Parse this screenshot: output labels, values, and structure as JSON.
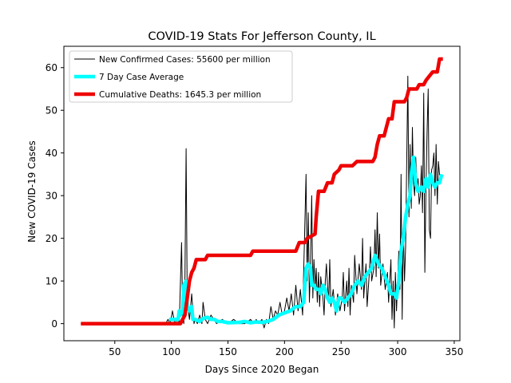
{
  "chart_data": {
    "type": "line",
    "title": "COVID-19 Stats For Jefferson County, IL",
    "xlabel": "Days Since 2020 Began",
    "ylabel": "New COVID-19 Cases",
    "xlim": [
      5,
      355
    ],
    "ylim": [
      -4,
      65
    ],
    "xticks": [
      50,
      100,
      150,
      200,
      250,
      300,
      350
    ],
    "yticks": [
      0,
      10,
      20,
      30,
      40,
      50,
      60
    ],
    "grid": false,
    "legend_position": "upper-left",
    "series": [
      {
        "name": "New Confirmed Cases: 55600 per million",
        "color": "#000000",
        "style": "thin",
        "points": [
          [
            20,
            0
          ],
          [
            95,
            0
          ],
          [
            97,
            1
          ],
          [
            99,
            0
          ],
          [
            101,
            3
          ],
          [
            103,
            0
          ],
          [
            105,
            1
          ],
          [
            107,
            0
          ],
          [
            109,
            19
          ],
          [
            110,
            2
          ],
          [
            111,
            0
          ],
          [
            112,
            10
          ],
          [
            113,
            41
          ],
          [
            114,
            5
          ],
          [
            116,
            1
          ],
          [
            118,
            7
          ],
          [
            119,
            3
          ],
          [
            120,
            0
          ],
          [
            121,
            1
          ],
          [
            123,
            0
          ],
          [
            125,
            2
          ],
          [
            127,
            0
          ],
          [
            128,
            5
          ],
          [
            130,
            1
          ],
          [
            132,
            0
          ],
          [
            135,
            2
          ],
          [
            140,
            0
          ],
          [
            145,
            1
          ],
          [
            150,
            0
          ],
          [
            155,
            1
          ],
          [
            160,
            0
          ],
          [
            165,
            0
          ],
          [
            170,
            1
          ],
          [
            173,
            0
          ],
          [
            175,
            1
          ],
          [
            177,
            0
          ],
          [
            180,
            1
          ],
          [
            182,
            -1
          ],
          [
            184,
            1
          ],
          [
            186,
            0
          ],
          [
            188,
            4
          ],
          [
            190,
            1
          ],
          [
            192,
            3
          ],
          [
            194,
            2
          ],
          [
            196,
            5
          ],
          [
            198,
            2
          ],
          [
            200,
            3
          ],
          [
            202,
            6
          ],
          [
            204,
            3
          ],
          [
            206,
            7
          ],
          [
            208,
            2
          ],
          [
            210,
            9
          ],
          [
            212,
            3
          ],
          [
            214,
            8
          ],
          [
            216,
            2
          ],
          [
            218,
            24
          ],
          [
            219,
            35
          ],
          [
            220,
            10
          ],
          [
            221,
            26
          ],
          [
            222,
            5
          ],
          [
            223,
            14
          ],
          [
            224,
            30
          ],
          [
            225,
            6
          ],
          [
            226,
            15
          ],
          [
            227,
            8
          ],
          [
            228,
            13
          ],
          [
            229,
            5
          ],
          [
            230,
            12
          ],
          [
            231,
            4
          ],
          [
            232,
            11
          ],
          [
            234,
            6
          ],
          [
            235,
            2
          ],
          [
            236,
            10
          ],
          [
            237,
            14
          ],
          [
            238,
            9
          ],
          [
            239,
            5
          ],
          [
            240,
            15
          ],
          [
            241,
            4
          ],
          [
            243,
            8
          ],
          [
            245,
            2
          ],
          [
            247,
            7
          ],
          [
            249,
            3
          ],
          [
            251,
            6
          ],
          [
            252,
            12
          ],
          [
            253,
            3
          ],
          [
            255,
            10
          ],
          [
            256,
            4
          ],
          [
            257,
            13
          ],
          [
            258,
            2
          ],
          [
            259,
            9
          ],
          [
            261,
            5
          ],
          [
            262,
            16
          ],
          [
            264,
            7
          ],
          [
            266,
            14
          ],
          [
            268,
            8
          ],
          [
            269,
            20
          ],
          [
            270,
            6
          ],
          [
            272,
            14
          ],
          [
            273,
            4
          ],
          [
            275,
            12
          ],
          [
            276,
            18
          ],
          [
            277,
            10
          ],
          [
            279,
            13
          ],
          [
            280,
            22
          ],
          [
            281,
            11
          ],
          [
            282,
            26
          ],
          [
            283,
            13
          ],
          [
            284,
            21
          ],
          [
            285,
            9
          ],
          [
            287,
            14
          ],
          [
            289,
            8
          ],
          [
            291,
            12
          ],
          [
            292,
            5
          ],
          [
            294,
            15
          ],
          [
            295,
            1
          ],
          [
            296,
            10
          ],
          [
            297,
            -1
          ],
          [
            298,
            12
          ],
          [
            299,
            3
          ],
          [
            301,
            17
          ],
          [
            302,
            8
          ],
          [
            303,
            35
          ],
          [
            304,
            1
          ],
          [
            305,
            23
          ],
          [
            306,
            10
          ],
          [
            307,
            18
          ],
          [
            308,
            38
          ],
          [
            309,
            58
          ],
          [
            310,
            25
          ],
          [
            311,
            42
          ],
          [
            312,
            27
          ],
          [
            313,
            46
          ],
          [
            314,
            33
          ],
          [
            315,
            30
          ],
          [
            316,
            39
          ],
          [
            317,
            32
          ],
          [
            318,
            34
          ],
          [
            319,
            28
          ],
          [
            320,
            30
          ],
          [
            321,
            37
          ],
          [
            322,
            26
          ],
          [
            323,
            54
          ],
          [
            324,
            12
          ],
          [
            325,
            32
          ],
          [
            326,
            45
          ],
          [
            327,
            55
          ],
          [
            328,
            22
          ],
          [
            329,
            20
          ],
          [
            330,
            36
          ],
          [
            331,
            37
          ],
          [
            332,
            40
          ],
          [
            333,
            30
          ],
          [
            334,
            42
          ],
          [
            335,
            28
          ],
          [
            336,
            38
          ],
          [
            337,
            35
          ],
          [
            338,
            34
          ]
        ]
      },
      {
        "name": "7 Day Case Average",
        "color": "#00ffff",
        "style": "medium",
        "points": [
          [
            98,
            1
          ],
          [
            104,
            1
          ],
          [
            106,
            1
          ],
          [
            107,
            3
          ],
          [
            108,
            2
          ],
          [
            110,
            3
          ],
          [
            111,
            9
          ],
          [
            113,
            10
          ],
          [
            114,
            4
          ],
          [
            116,
            3
          ],
          [
            118,
            4
          ],
          [
            119,
            1
          ],
          [
            121,
            1
          ],
          [
            125,
            0.5
          ],
          [
            128,
            1.2
          ],
          [
            132,
            1.5
          ],
          [
            135,
            1
          ],
          [
            138,
            1
          ],
          [
            141,
            0.5
          ],
          [
            145,
            0.5
          ],
          [
            150,
            0.2
          ],
          [
            160,
            0.3
          ],
          [
            165,
            0.5
          ],
          [
            170,
            0.2
          ],
          [
            175,
            0.4
          ],
          [
            180,
            0.3
          ],
          [
            185,
            0.5
          ],
          [
            190,
            1
          ],
          [
            195,
            2
          ],
          [
            200,
            2.5
          ],
          [
            205,
            3
          ],
          [
            210,
            4
          ],
          [
            214,
            4
          ],
          [
            217,
            5
          ],
          [
            219,
            13
          ],
          [
            221,
            14
          ],
          [
            223,
            13
          ],
          [
            224,
            9
          ],
          [
            226,
            9
          ],
          [
            228,
            8
          ],
          [
            231,
            8
          ],
          [
            232,
            7
          ],
          [
            234,
            9
          ],
          [
            236,
            8
          ],
          [
            238,
            6
          ],
          [
            240,
            5
          ],
          [
            242,
            6
          ],
          [
            244,
            5
          ],
          [
            246,
            3
          ],
          [
            248,
            6
          ],
          [
            250,
            6
          ],
          [
            253,
            5
          ],
          [
            256,
            6
          ],
          [
            259,
            7
          ],
          [
            262,
            9
          ],
          [
            265,
            10
          ],
          [
            268,
            9
          ],
          [
            271,
            11
          ],
          [
            274,
            12
          ],
          [
            277,
            13
          ],
          [
            280,
            16
          ],
          [
            283,
            14
          ],
          [
            286,
            13
          ],
          [
            289,
            11
          ],
          [
            292,
            9
          ],
          [
            294,
            7
          ],
          [
            297,
            7
          ],
          [
            299,
            6
          ],
          [
            301,
            10
          ],
          [
            303,
            17
          ],
          [
            305,
            20
          ],
          [
            307,
            25
          ],
          [
            309,
            28
          ],
          [
            311,
            30
          ],
          [
            312,
            35
          ],
          [
            314,
            39
          ],
          [
            316,
            33
          ],
          [
            318,
            31
          ],
          [
            321,
            32
          ],
          [
            323,
            31
          ],
          [
            325,
            34
          ],
          [
            327,
            32
          ],
          [
            329,
            35
          ],
          [
            331,
            33
          ],
          [
            333,
            32
          ],
          [
            335,
            33
          ],
          [
            337,
            33
          ],
          [
            339,
            35
          ]
        ]
      },
      {
        "name": "Cumulative Deaths: 1645.3 per million",
        "color": "#ee0000",
        "style": "thick",
        "points": [
          [
            20,
            0
          ],
          [
            108,
            0
          ],
          [
            112,
            2
          ],
          [
            114,
            6
          ],
          [
            116,
            10
          ],
          [
            118,
            12
          ],
          [
            120,
            13
          ],
          [
            122,
            15
          ],
          [
            130,
            15
          ],
          [
            132,
            16
          ],
          [
            170,
            16
          ],
          [
            172,
            17
          ],
          [
            210,
            17
          ],
          [
            213,
            19
          ],
          [
            218,
            19
          ],
          [
            220,
            20
          ],
          [
            227,
            21
          ],
          [
            228,
            25
          ],
          [
            230,
            31
          ],
          [
            235,
            31
          ],
          [
            238,
            33
          ],
          [
            242,
            33
          ],
          [
            244,
            35
          ],
          [
            248,
            36
          ],
          [
            250,
            37
          ],
          [
            260,
            37
          ],
          [
            264,
            38
          ],
          [
            278,
            38
          ],
          [
            280,
            39
          ],
          [
            282,
            42
          ],
          [
            284,
            44
          ],
          [
            288,
            44
          ],
          [
            290,
            46
          ],
          [
            292,
            48
          ],
          [
            295,
            48
          ],
          [
            297,
            52
          ],
          [
            306,
            52
          ],
          [
            308,
            53
          ],
          [
            310,
            55
          ],
          [
            317,
            55
          ],
          [
            319,
            56
          ],
          [
            323,
            56
          ],
          [
            325,
            57
          ],
          [
            328,
            58
          ],
          [
            331,
            59
          ],
          [
            335,
            59
          ],
          [
            337,
            62
          ],
          [
            340,
            62
          ]
        ]
      }
    ]
  }
}
